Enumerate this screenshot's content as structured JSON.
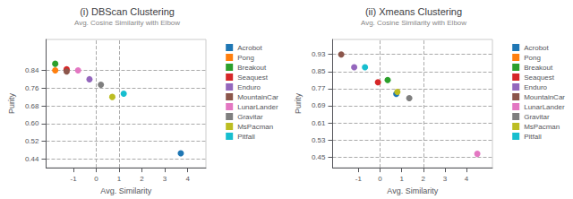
{
  "chart_data": [
    {
      "type": "scatter",
      "title": "(i) DBScan Clustering",
      "subtitle": "Avg. Cosine Similarity with Elbow",
      "xlabel": "Avg. Similarity",
      "ylabel": "Purity",
      "marker": "circle",
      "legend": "right",
      "grid": "y",
      "xlim": [
        -2.2,
        4.8
      ],
      "ylim": [
        0.4,
        0.98
      ],
      "xticks": [
        -1,
        0,
        1,
        2,
        3,
        4
      ],
      "yticks": [
        0.84,
        0.76,
        0.68,
        {
          "value": 0.6,
          "label": "0.60"
        },
        0.52,
        0.44
      ],
      "vlines": [
        0,
        1
      ],
      "series": [
        {
          "name": "Acrobot",
          "color": "#1f77b4",
          "x": [
            3.7
          ],
          "values": [
            0.465
          ]
        },
        {
          "name": "Pong",
          "color": "#ff7f0e",
          "x": [
            -1.8
          ],
          "values": [
            0.84
          ]
        },
        {
          "name": "Breakout",
          "color": "#2ca02c",
          "x": [
            -1.8
          ],
          "values": [
            0.87
          ]
        },
        {
          "name": "Seaquest",
          "color": "#d62728",
          "x": [
            -1.3
          ],
          "values": [
            0.845
          ]
        },
        {
          "name": "Enduro",
          "color": "#9467bd",
          "x": [
            -0.3
          ],
          "values": [
            0.8
          ]
        },
        {
          "name": "MountainCar",
          "color": "#8c564b",
          "x": [
            -1.3
          ],
          "values": [
            0.835
          ]
        },
        {
          "name": "LunarLander",
          "color": "#e377c2",
          "x": [
            -0.8
          ],
          "values": [
            0.84
          ]
        },
        {
          "name": "Gravitar",
          "color": "#7f7f7f",
          "x": [
            0.2
          ],
          "values": [
            0.775
          ]
        },
        {
          "name": "MsPacman",
          "color": "#bcbd22",
          "x": [
            0.7
          ],
          "values": [
            0.72
          ]
        },
        {
          "name": "Pitfall",
          "color": "#17becf",
          "x": [
            1.2
          ],
          "values": [
            0.735
          ]
        }
      ]
    },
    {
      "type": "scatter",
      "title": "(ii) Xmeans Clustering",
      "subtitle": "Avg. Cosine Similarity with Elbow",
      "xlabel": "Avg. Similarity",
      "ylabel": "Purity",
      "marker": "circle",
      "legend": "right",
      "grid": "y",
      "xlim": [
        -2.2,
        5.2
      ],
      "ylim": [
        0.4,
        1.0
      ],
      "xticks": [
        -1,
        0,
        1,
        2,
        3,
        4
      ],
      "yticks": [
        0.93,
        0.85,
        0.77,
        0.69,
        0.61,
        0.53,
        0.45
      ],
      "vlines": [
        0,
        2
      ],
      "series": [
        {
          "name": "Acrobot",
          "color": "#1f77b4",
          "x": [
            0.75
          ],
          "values": [
            0.745
          ]
        },
        {
          "name": "Pong",
          "color": "#ff7f0e",
          "x": [],
          "values": []
        },
        {
          "name": "Breakout",
          "color": "#2ca02c",
          "x": [
            0.35
          ],
          "values": [
            0.81
          ]
        },
        {
          "name": "Seaquest",
          "color": "#d62728",
          "x": [
            -0.1
          ],
          "values": [
            0.8
          ]
        },
        {
          "name": "Enduro",
          "color": "#9467bd",
          "x": [
            -1.2
          ],
          "values": [
            0.87
          ]
        },
        {
          "name": "MountainCar",
          "color": "#8c564b",
          "x": [
            -1.8
          ],
          "values": [
            0.93
          ]
        },
        {
          "name": "LunarLander",
          "color": "#e377c2",
          "x": [
            4.5
          ],
          "values": [
            0.465
          ]
        },
        {
          "name": "Gravitar",
          "color": "#7f7f7f",
          "x": [
            1.35
          ],
          "values": [
            0.725
          ]
        },
        {
          "name": "MsPacman",
          "color": "#bcbd22",
          "x": [
            0.8
          ],
          "values": [
            0.755
          ]
        },
        {
          "name": "Pitfall",
          "color": "#17becf",
          "x": [
            -0.7
          ],
          "values": [
            0.87
          ]
        }
      ]
    }
  ]
}
